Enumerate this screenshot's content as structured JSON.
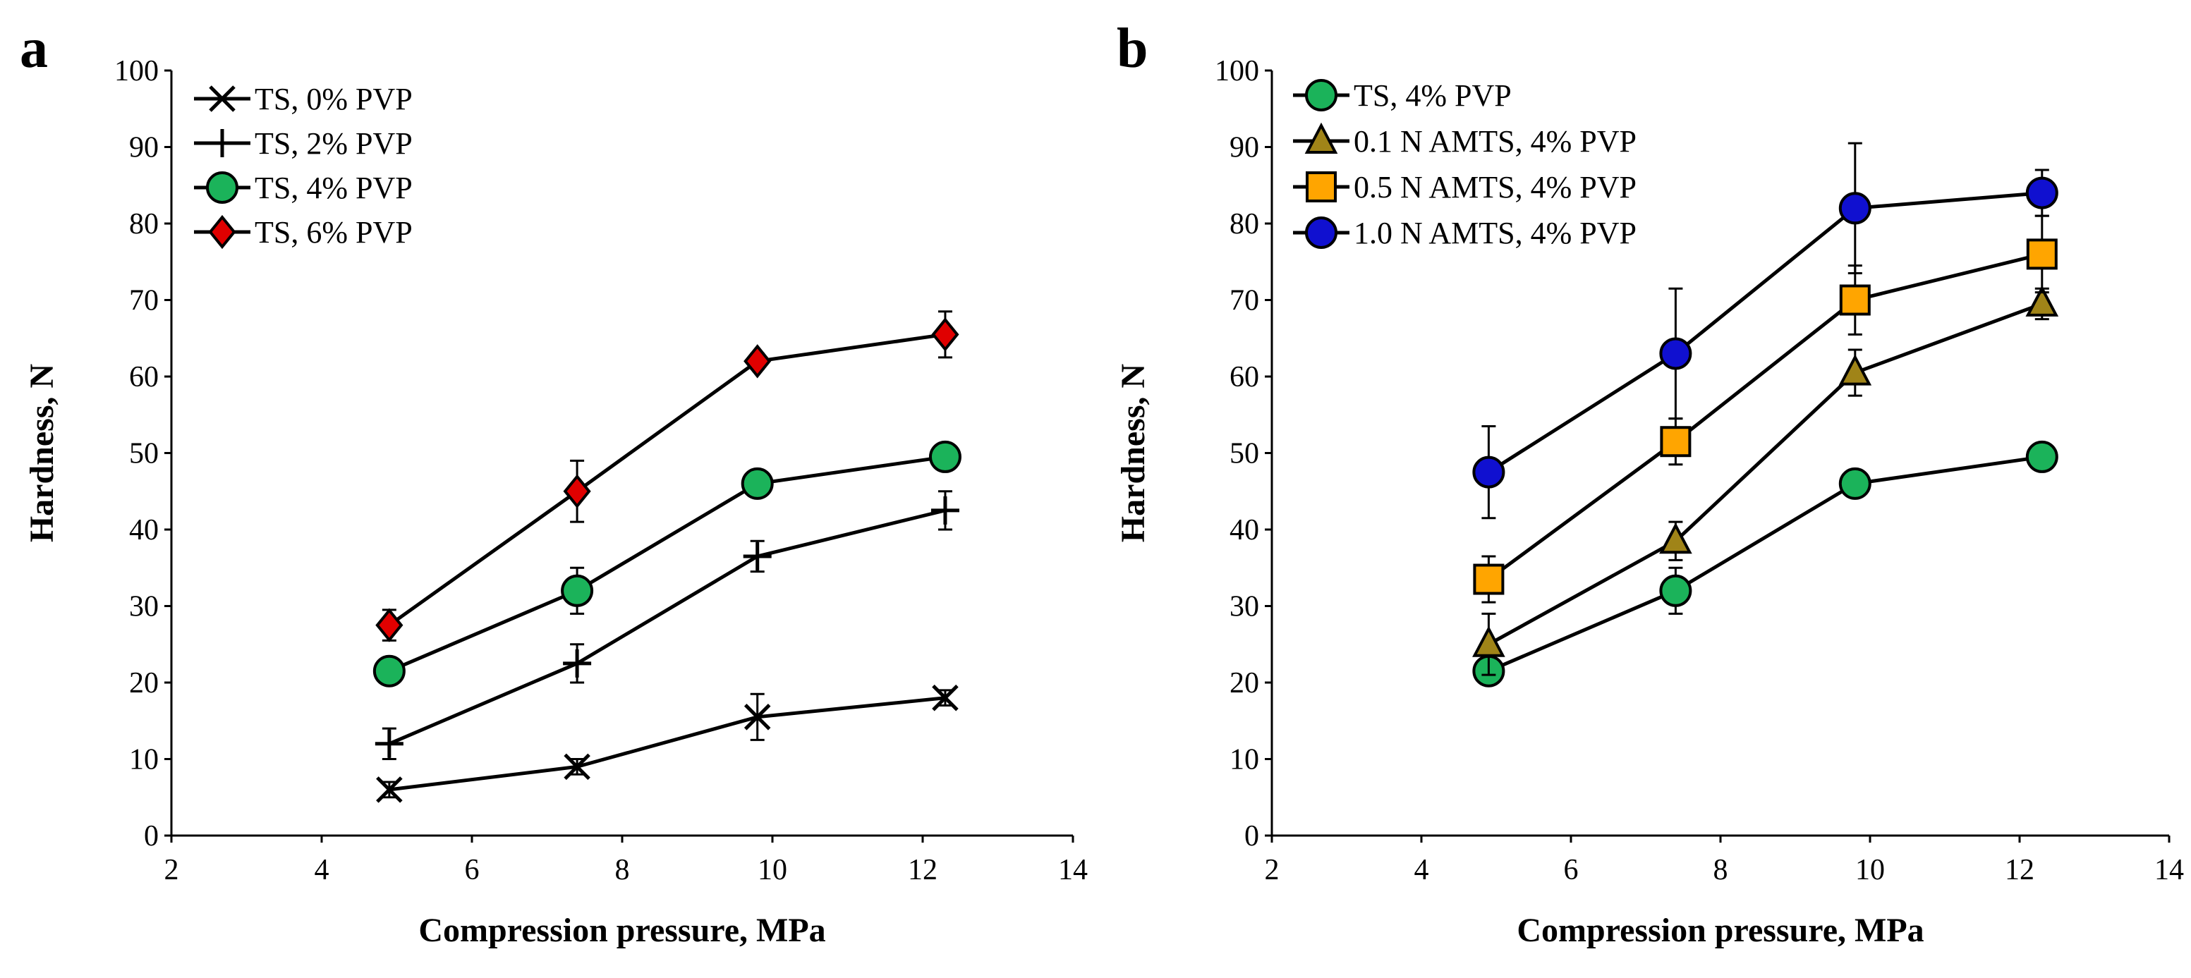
{
  "chart_data": [
    {
      "type": "line",
      "panel_label": "a",
      "xlabel": "Compression pressure, MPa",
      "ylabel": "Hardness, N",
      "xlim": [
        2,
        14
      ],
      "ylim": [
        0,
        100
      ],
      "xticks": [
        2,
        4,
        6,
        8,
        10,
        12,
        14
      ],
      "yticks": [
        0,
        10,
        20,
        30,
        40,
        50,
        60,
        70,
        80,
        90,
        100
      ],
      "legend_position": "top-left",
      "grid": false,
      "series": [
        {
          "name": "TS, 0% PVP",
          "marker": "x",
          "color": "#000000",
          "x": [
            4.9,
            7.4,
            9.8,
            12.3
          ],
          "y": [
            6,
            9,
            15.5,
            18
          ],
          "err": [
            1,
            1,
            3,
            1
          ]
        },
        {
          "name": "TS, 2% PVP",
          "marker": "plus",
          "color": "#000000",
          "x": [
            4.9,
            7.4,
            9.8,
            12.3
          ],
          "y": [
            12,
            22.5,
            36.5,
            42.5
          ],
          "err": [
            2,
            2.5,
            2,
            2.5
          ]
        },
        {
          "name": "TS, 4% PVP",
          "marker": "circle",
          "color": "#1bb35a",
          "x": [
            4.9,
            7.4,
            9.8,
            12.3
          ],
          "y": [
            21.5,
            32,
            46,
            49.5
          ],
          "err": [
            1,
            3,
            1,
            1
          ]
        },
        {
          "name": "TS, 6% PVP",
          "marker": "diamond",
          "color": "#e00000",
          "x": [
            4.9,
            7.4,
            9.8,
            12.3
          ],
          "y": [
            27.5,
            45,
            62,
            65.5
          ],
          "err": [
            2,
            4,
            1,
            3
          ]
        }
      ]
    },
    {
      "type": "line",
      "panel_label": "b",
      "xlabel": "Compression pressure, MPa",
      "ylabel": "Hardness, N",
      "xlim": [
        2,
        14
      ],
      "ylim": [
        0,
        100
      ],
      "xticks": [
        2,
        4,
        6,
        8,
        10,
        12,
        14
      ],
      "yticks": [
        0,
        10,
        20,
        30,
        40,
        50,
        60,
        70,
        80,
        90,
        100
      ],
      "legend_position": "top-left",
      "grid": false,
      "series": [
        {
          "name": "TS, 4% PVP",
          "marker": "circle",
          "color": "#1bb35a",
          "x": [
            4.9,
            7.4,
            9.8,
            12.3
          ],
          "y": [
            21.5,
            32,
            46,
            49.5
          ],
          "err": [
            1,
            3,
            1,
            1
          ]
        },
        {
          "name": "0.1 N AMTS, 4% PVP",
          "marker": "triangle",
          "color": "#a08418",
          "x": [
            4.9,
            7.4,
            9.8,
            12.3
          ],
          "y": [
            25,
            38.5,
            60.5,
            69.5
          ],
          "err": [
            4,
            2.5,
            3,
            2
          ]
        },
        {
          "name": "0.5 N AMTS, 4% PVP",
          "marker": "square",
          "color": "#ffa500",
          "x": [
            4.9,
            7.4,
            9.8,
            12.3
          ],
          "y": [
            33.5,
            51.5,
            70,
            76
          ],
          "err": [
            3,
            3,
            4.5,
            5
          ]
        },
        {
          "name": "1.0 N AMTS, 4% PVP",
          "marker": "circle",
          "color": "#1010d0",
          "x": [
            4.9,
            7.4,
            9.8,
            12.3
          ],
          "y": [
            47.5,
            63,
            82,
            84
          ],
          "err": [
            6,
            8.5,
            8.5,
            3
          ]
        }
      ]
    }
  ]
}
